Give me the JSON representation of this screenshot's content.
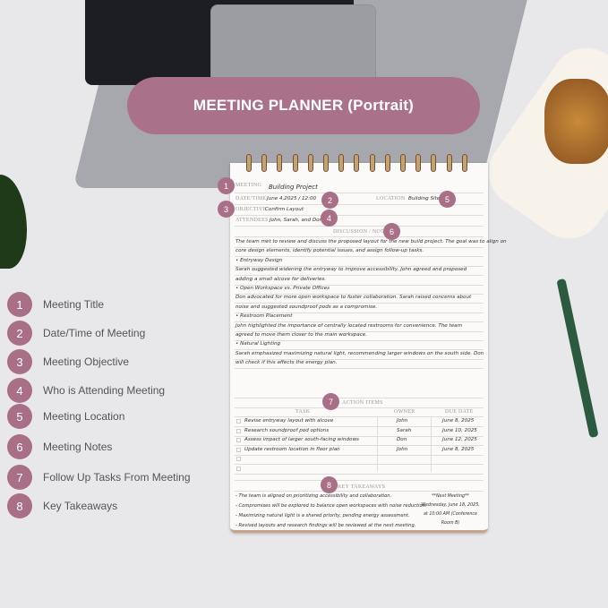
{
  "banner": {
    "title": "MEETING PLANNER (Portrait)"
  },
  "colors": {
    "accent": "#a86f87",
    "background": "#e8e8ea"
  },
  "legend": [
    {
      "num": "1",
      "label": "Meeting Title"
    },
    {
      "num": "2",
      "label": "Date/Time of Meeting"
    },
    {
      "num": "3",
      "label": "Meeting Objective"
    },
    {
      "num": "4",
      "label": "Who is Attending Meeting"
    },
    {
      "num": "5",
      "label": "Meeting Location"
    },
    {
      "num": "6",
      "label": "Meeting Notes"
    },
    {
      "num": "7",
      "label": "Follow Up Tasks From Meeting"
    },
    {
      "num": "8",
      "label": "Key Takeaways"
    }
  ],
  "pad": {
    "meeting_label": "MEETING",
    "meeting": "Building Project",
    "datetime_label": "DATE/TIME",
    "datetime": "June 4,2025  /  12:00",
    "location_label": "LOCATION",
    "location": "Building Site",
    "objective_label": "OBJECTIVE",
    "objective": "Confirm Layout",
    "attendees_label": "ATTENDEES",
    "attendees": "John, Sarah, and Don",
    "notes_label": "DISCUSSION / NOTES",
    "notes": [
      "The team met to review and discuss the proposed layout for the new build project. The goal was to align on",
      "core design elements, identify potential issues, and assign follow-up tasks.",
      "  • Entryway Design",
      "Sarah suggested widening the entryway to improve accessibility. John agreed and proposed",
      "adding a small alcove for deliveries.",
      "  • Open Workspace vs. Private Offices",
      "Don advocated for more open workspace to foster collaboration. Sarah raised concerns about",
      "noise and suggested soundproof pods as a compromise.",
      "  • Restroom Placement",
      "John highlighted the importance of centrally located restrooms for convenience. The team",
      "agreed to move them closer to the main workspace.",
      "  • Natural Lighting",
      "Sarah emphasized maximizing natural light, recommending larger windows on the south side. Don",
      "will check if this affects the energy plan."
    ],
    "action_label": "ACTION ITEMS",
    "columns": [
      "TASK",
      "OWNER",
      "DUE DATE"
    ],
    "actions": [
      {
        "task": "Revise entryway layout with alcove",
        "owner": "John",
        "due": "June 8, 2025"
      },
      {
        "task": "Research soundproof pod options",
        "owner": "Sarah",
        "due": "June 10, 2025"
      },
      {
        "task": "Assess impact of larger south-facing windows",
        "owner": "Don",
        "due": "June 12, 2025"
      },
      {
        "task": "Update restroom location in floor plan",
        "owner": "John",
        "due": "June 8, 2025"
      }
    ],
    "takeaways_label": "KEY TAKEAWAYS",
    "takeaways": [
      "- The team is aligned on prioritizing accessibility and collaboration.",
      "- Compromises will be explored to balance open workspaces with noise reduction.",
      "- Maximizing natural light is a shared priority, pending energy assessment.",
      "- Revised layouts and research findings will be reviewed at the next meeting."
    ],
    "next_meeting": [
      "**Next Meeting**",
      "Wednesday, June 18, 2025,",
      "at 10:00 AM (Conference",
      "Room B)"
    ]
  }
}
